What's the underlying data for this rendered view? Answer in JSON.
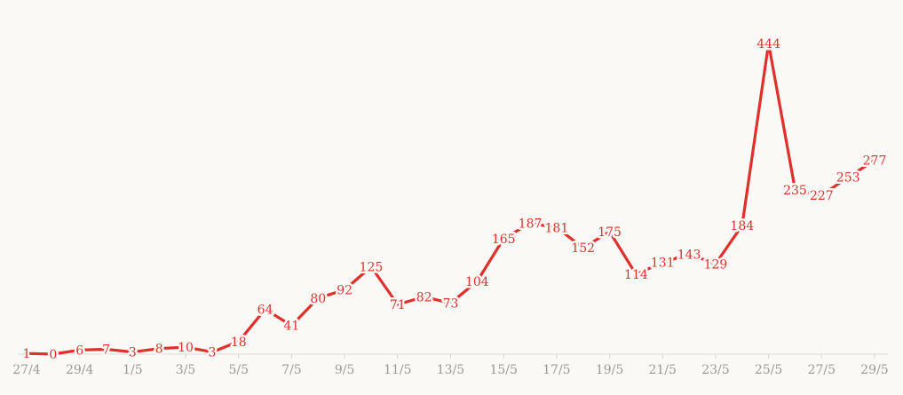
{
  "chart_data": {
    "type": "line",
    "title": "",
    "xlabel": "",
    "ylabel": "",
    "x": [
      "27/4",
      "28/4",
      "29/4",
      "30/4",
      "1/5",
      "2/5",
      "3/5",
      "4/5",
      "5/5",
      "6/5",
      "7/5",
      "8/5",
      "9/5",
      "10/5",
      "11/5",
      "12/5",
      "13/5",
      "14/5",
      "15/5",
      "16/5",
      "17/5",
      "18/5",
      "19/5",
      "20/5",
      "21/5",
      "22/5",
      "23/5",
      "24/5",
      "25/5",
      "26/5",
      "27/5",
      "28/5",
      "29/5"
    ],
    "values": [
      1,
      0,
      6,
      7,
      3,
      8,
      10,
      3,
      18,
      64,
      41,
      80,
      92,
      125,
      71,
      82,
      73,
      104,
      165,
      187,
      181,
      152,
      175,
      114,
      131,
      143,
      129,
      184,
      444,
      235,
      227,
      253,
      277
    ],
    "tick_labels": [
      "27/4",
      "29/4",
      "1/5",
      "3/5",
      "5/5",
      "7/5",
      "9/5",
      "11/5",
      "13/5",
      "15/5",
      "17/5",
      "19/5",
      "21/5",
      "23/5",
      "25/5",
      "27/5",
      "29/5"
    ],
    "ylim": [
      0,
      444
    ],
    "grid": false,
    "legend": "none",
    "colors": {
      "line": "#e0302c",
      "tick_text": "#9a9a9a",
      "background": "#fbf9f6"
    }
  }
}
